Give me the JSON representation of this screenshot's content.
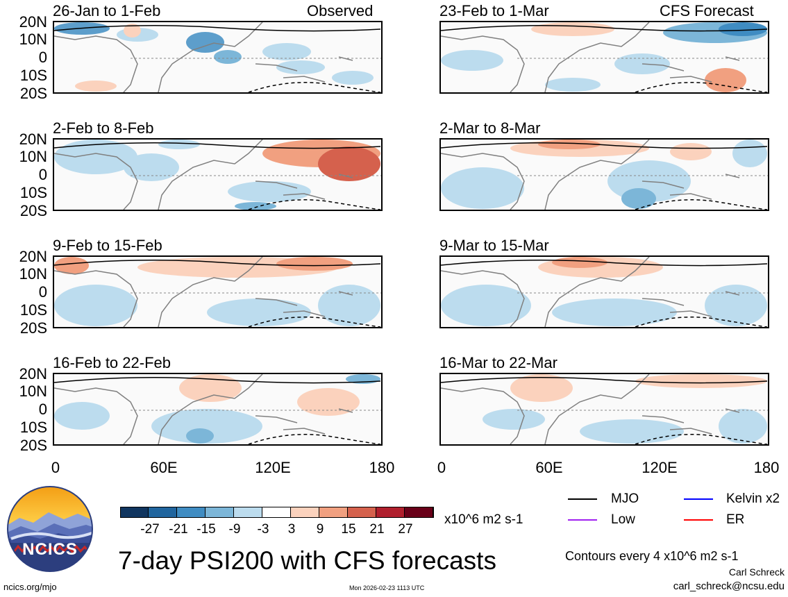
{
  "observed_label": "Observed",
  "forecast_label": "CFS Forecast",
  "latitude_labels": [
    "20N",
    "10N",
    "0",
    "10S",
    "20S"
  ],
  "longitude_labels": [
    "0",
    "60E",
    "120E",
    "180"
  ],
  "left_panels": [
    {
      "title": "26-Jan to 1-Feb"
    },
    {
      "title": "2-Feb to 8-Feb"
    },
    {
      "title": "9-Feb to 15-Feb"
    },
    {
      "title": "16-Feb to 22-Feb"
    }
  ],
  "right_panels": [
    {
      "title": "23-Feb to 1-Mar"
    },
    {
      "title": "2-Mar to 8-Mar"
    },
    {
      "title": "9-Mar to 15-Mar"
    },
    {
      "title": "16-Mar to 22-Mar"
    }
  ],
  "colorbar": {
    "ticks": [
      "-27",
      "-21",
      "-15",
      "-9",
      "-3",
      "3",
      "9",
      "15",
      "21",
      "27"
    ],
    "colors": [
      "#10355f",
      "#20659e",
      "#3f8cc2",
      "#7cb6d8",
      "#bcdcee",
      "#ffffff",
      "#fbd2bd",
      "#f1a080",
      "#d5614d",
      "#b01f2d",
      "#690019"
    ],
    "units": "x10^6 m2 s-1"
  },
  "logo_text": "NCICS",
  "main_title": "7-day PSI200 with CFS forecasts",
  "legend": [
    {
      "label": "MJO",
      "color": "#000000"
    },
    {
      "label": "Kelvin x2",
      "color": "#0000ff"
    },
    {
      "label": "Low",
      "color": "#a020f0"
    },
    {
      "label": "ER",
      "color": "#ff0000"
    }
  ],
  "contour_note": "Contours every 4 x10^6 m2 s-1",
  "author": "Carl Schreck",
  "email": "carl_schreck@ncsu.edu",
  "website": "ncics.org/mjo",
  "timestamp": "Mon 2026-02-23 1113 UTC"
}
